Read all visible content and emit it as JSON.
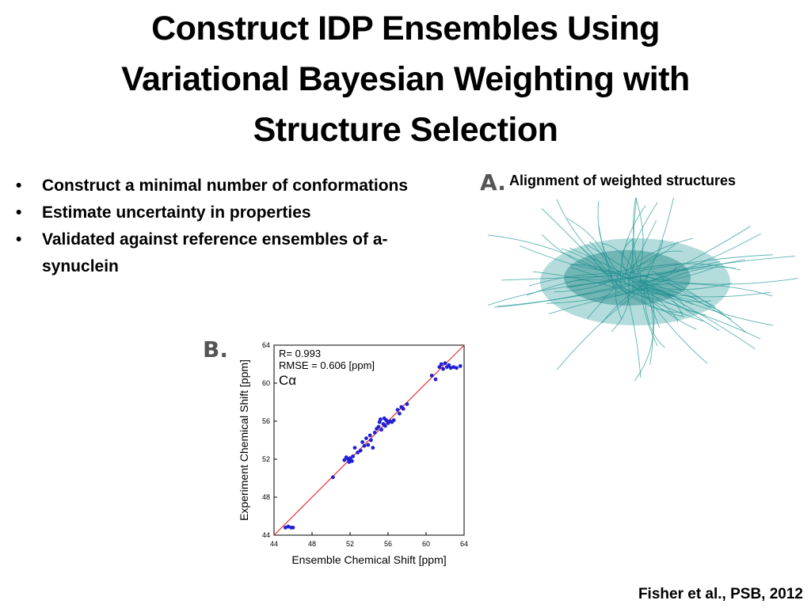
{
  "slide": {
    "title_lines": [
      "Construct IDP Ensembles Using",
      "Variational Bayesian Weighting with",
      "Structure Selection"
    ],
    "bullets": [
      "Construct a minimal number of conformations",
      "Estimate uncertainty in properties",
      "Validated against reference ensembles of a-synuclein"
    ],
    "panel_a": {
      "label": "A.",
      "caption": "Alignment of weighted structures"
    },
    "panel_b": {
      "label": "B."
    },
    "citation": "Fisher et al., PSB, 2012"
  },
  "chart_data": {
    "type": "scatter",
    "xlabel": "Ensemble Chemical Shift [ppm]",
    "ylabel": "Experiment Chemical Shift [ppm]",
    "xlim": [
      44,
      64
    ],
    "ylim": [
      44,
      64
    ],
    "xticks": [
      44,
      48,
      52,
      56,
      60,
      64
    ],
    "yticks": [
      44,
      48,
      52,
      56,
      60,
      64
    ],
    "annotations": [
      "R= 0.993",
      "RMSE = 0.606 [ppm]",
      "Cα"
    ],
    "reference_line": {
      "from": [
        44,
        44
      ],
      "to": [
        64,
        64
      ],
      "color": "#e8312a"
    },
    "point_color": "#1f1fd6",
    "points": [
      [
        45.2,
        44.8
      ],
      [
        45.5,
        44.9
      ],
      [
        45.8,
        44.8
      ],
      [
        46.0,
        44.8
      ],
      [
        50.2,
        50.1
      ],
      [
        51.4,
        51.9
      ],
      [
        51.6,
        52.2
      ],
      [
        51.8,
        52.0
      ],
      [
        52.0,
        52.1
      ],
      [
        52.2,
        51.8
      ],
      [
        51.9,
        51.7
      ],
      [
        52.3,
        52.3
      ],
      [
        52.1,
        51.9
      ],
      [
        52.5,
        53.2
      ],
      [
        52.8,
        52.7
      ],
      [
        53.1,
        52.9
      ],
      [
        53.3,
        53.8
      ],
      [
        53.5,
        53.4
      ],
      [
        53.7,
        54.2
      ],
      [
        53.9,
        53.5
      ],
      [
        54.1,
        54.5
      ],
      [
        54.2,
        54.0
      ],
      [
        54.4,
        53.2
      ],
      [
        54.6,
        54.8
      ],
      [
        54.8,
        55.2
      ],
      [
        55.0,
        55.4
      ],
      [
        55.1,
        55.9
      ],
      [
        55.2,
        56.2
      ],
      [
        55.3,
        55.1
      ],
      [
        55.5,
        55.7
      ],
      [
        55.6,
        56.3
      ],
      [
        55.7,
        55.5
      ],
      [
        55.8,
        56.1
      ],
      [
        56.0,
        55.8
      ],
      [
        56.2,
        56.0
      ],
      [
        56.4,
        55.9
      ],
      [
        56.6,
        56.1
      ],
      [
        57.0,
        57.2
      ],
      [
        57.2,
        56.8
      ],
      [
        57.4,
        57.5
      ],
      [
        57.6,
        57.3
      ],
      [
        58.0,
        57.8
      ],
      [
        60.6,
        60.8
      ],
      [
        61.0,
        60.4
      ],
      [
        61.4,
        61.7
      ],
      [
        61.6,
        62.0
      ],
      [
        61.8,
        61.5
      ],
      [
        62.0,
        62.1
      ],
      [
        62.2,
        61.7
      ],
      [
        62.4,
        61.9
      ],
      [
        62.6,
        61.6
      ],
      [
        62.9,
        61.7
      ],
      [
        63.2,
        61.6
      ],
      [
        63.6,
        61.8
      ]
    ]
  }
}
